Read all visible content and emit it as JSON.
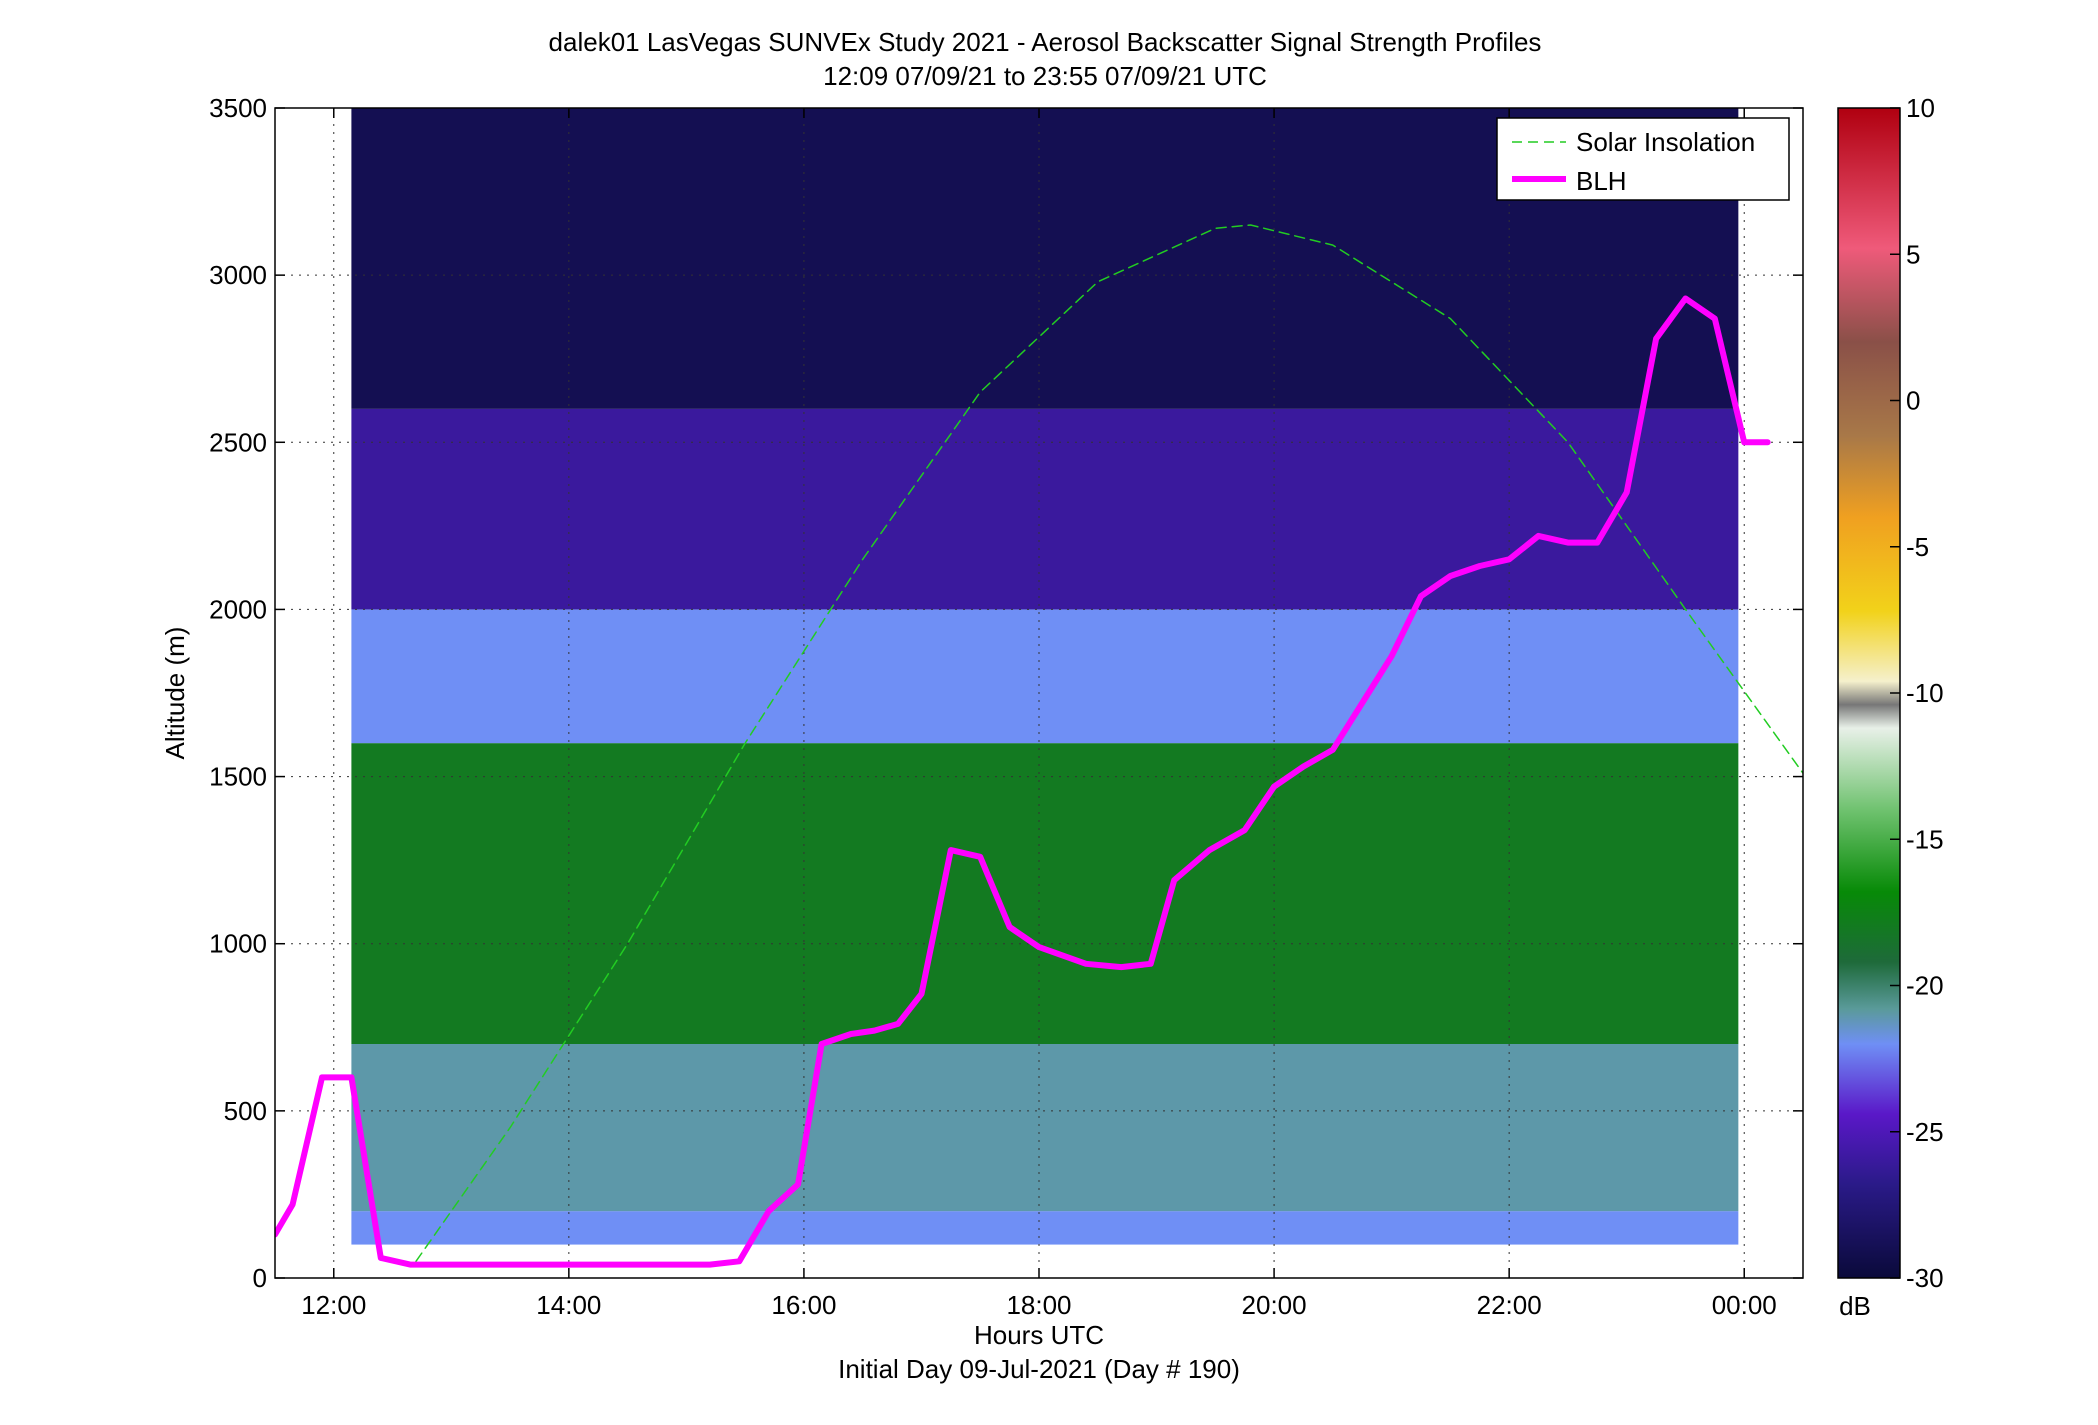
{
  "chart_data": {
    "type": "heatmap",
    "title": "dalek01 LasVegas SUNVEx Study 2021 - Aerosol Backscatter Signal Strength Profiles",
    "subtitle": "12:09 07/09/21 to 23:55 07/09/21  UTC",
    "xlabel": "Hours UTC",
    "xlabel2": "Initial Day 09-Jul-2021 (Day # 190)",
    "ylabel": "Altitude (m)",
    "xlim": [
      11.5,
      24.5
    ],
    "ylim": [
      0,
      3500
    ],
    "x_ticks": [
      12,
      14,
      16,
      18,
      20,
      22,
      24
    ],
    "x_tick_labels": [
      "12:00",
      "14:00",
      "16:00",
      "18:00",
      "20:00",
      "22:00",
      "00:00"
    ],
    "y_ticks": [
      0,
      500,
      1000,
      1500,
      2000,
      2500,
      3000,
      3500
    ],
    "y_tick_labels": [
      "0",
      "500",
      "1000",
      "1500",
      "2000",
      "2500",
      "3000",
      "3500"
    ],
    "grid": true,
    "legend": {
      "position": "top-right",
      "entries": [
        {
          "label": "Solar Insolation",
          "color": "#22cc22",
          "style": "dashed"
        },
        {
          "label": "BLH",
          "color": "#ff00ff",
          "style": "solid"
        }
      ]
    },
    "colorbar": {
      "label": "dB",
      "range": [
        -30,
        10
      ],
      "ticks": [
        10,
        5,
        0,
        -5,
        -10,
        -15,
        -20,
        -25,
        -30
      ],
      "tick_labels": [
        "10",
        "5",
        "0",
        "-5",
        "-10",
        "-15",
        "-20",
        "-25",
        "-30"
      ]
    },
    "heatmap": {
      "x_start": 12.15,
      "x_end": 23.95,
      "y_start": 100,
      "y_end": 3500,
      "value_units": "dB",
      "layers": [
        {
          "upper_alt": 200,
          "value_db": -22
        },
        {
          "upper_alt": 700,
          "value_db": -21
        },
        {
          "upper_alt": 1600,
          "value_db": -18
        },
        {
          "upper_alt": 2000,
          "value_db": -22
        },
        {
          "upper_alt": 2600,
          "value_db": -26
        },
        {
          "upper_alt": 3500,
          "value_db": -29
        }
      ]
    },
    "series": [
      {
        "name": "Solar Insolation",
        "style": "dashed",
        "color": "#22cc22",
        "x": [
          12.7,
          13.5,
          14.5,
          15.5,
          16.5,
          17.5,
          18.5,
          19.5,
          19.8,
          20.5,
          21.5,
          22.5,
          23.5,
          24.5
        ],
        "y": [
          50,
          450,
          1000,
          1600,
          2150,
          2650,
          2980,
          3140,
          3150,
          3090,
          2870,
          2500,
          2000,
          1510
        ]
      },
      {
        "name": "BLH",
        "style": "solid",
        "color": "#ff00ff",
        "x": [
          11.5,
          11.65,
          11.9,
          12.15,
          12.4,
          12.65,
          13.0,
          14.0,
          15.0,
          15.2,
          15.45,
          15.7,
          15.95,
          16.15,
          16.4,
          16.6,
          16.8,
          17.0,
          17.25,
          17.5,
          17.75,
          18.0,
          18.4,
          18.7,
          18.95,
          19.15,
          19.45,
          19.75,
          20.0,
          20.25,
          20.5,
          20.75,
          21.0,
          21.25,
          21.5,
          21.75,
          22.0,
          22.25,
          22.5,
          22.75,
          23.0,
          23.25,
          23.5,
          23.75,
          24.0,
          24.2
        ],
        "y": [
          130,
          220,
          600,
          600,
          60,
          40,
          40,
          40,
          40,
          40,
          50,
          200,
          280,
          700,
          730,
          740,
          760,
          850,
          1280,
          1260,
          1050,
          990,
          940,
          930,
          940,
          1190,
          1280,
          1340,
          1470,
          1530,
          1580,
          1720,
          1860,
          2040,
          2100,
          2130,
          2150,
          2220,
          2200,
          2200,
          2350,
          2810,
          2930,
          2870,
          2500,
          2500
        ]
      }
    ]
  }
}
